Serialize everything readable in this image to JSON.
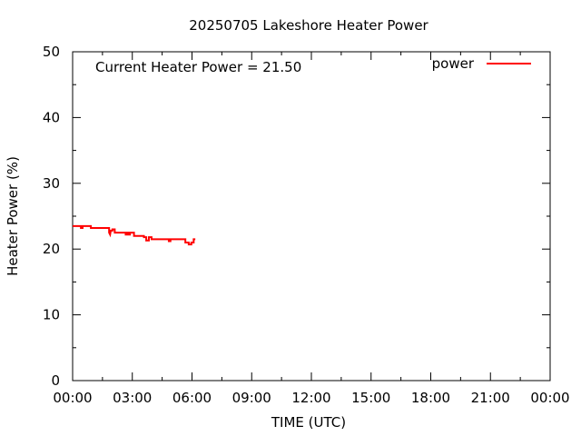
{
  "chart_data": {
    "type": "line",
    "title": "20250705 Lakeshore Heater Power",
    "xlabel": "TIME (UTC)",
    "ylabel": "Heater Power (%)",
    "annotation": "Current Heater Power = 21.50",
    "xlim": [
      "00:00",
      "24:00"
    ],
    "ylim": [
      0,
      50
    ],
    "x_ticks": [
      "00:00",
      "03:00",
      "06:00",
      "09:00",
      "12:00",
      "15:00",
      "18:00",
      "21:00",
      "00:00"
    ],
    "y_ticks": [
      "0",
      "10",
      "20",
      "30",
      "40",
      "50"
    ],
    "grid": false,
    "legend_position": "top-right",
    "series": [
      {
        "name": "power",
        "color": "#ff0000",
        "x": [
          "00:00",
          "00:25",
          "00:25",
          "00:30",
          "00:30",
          "00:55",
          "00:55",
          "01:50",
          "01:50",
          "01:53",
          "01:55",
          "02:00",
          "02:00",
          "02:07",
          "02:07",
          "02:12",
          "02:12",
          "02:40",
          "02:40",
          "02:43",
          "02:43",
          "02:48",
          "02:48",
          "02:53",
          "02:53",
          "03:05",
          "03:05",
          "03:35",
          "03:35",
          "03:42",
          "03:42",
          "03:50",
          "03:50",
          "03:58",
          "03:58",
          "04:10",
          "04:10",
          "04:50",
          "04:50",
          "04:55",
          "04:55",
          "05:40",
          "05:40",
          "05:50",
          "05:50",
          "05:58",
          "05:58",
          "06:05",
          "06:05",
          "06:10"
        ],
        "values": [
          23.5,
          23.5,
          23.2,
          23.2,
          23.5,
          23.5,
          23.2,
          23.2,
          22.5,
          22.2,
          22.8,
          22.8,
          23.0,
          23.0,
          22.5,
          22.5,
          22.5,
          22.5,
          22.2,
          22.2,
          22.5,
          22.5,
          22.2,
          22.2,
          22.5,
          22.5,
          22.0,
          22.0,
          21.8,
          21.8,
          21.3,
          21.3,
          21.8,
          21.8,
          21.5,
          21.5,
          21.5,
          21.5,
          21.2,
          21.2,
          21.5,
          21.5,
          21.0,
          21.0,
          20.7,
          20.7,
          21.0,
          21.0,
          21.5,
          21.5
        ]
      }
    ]
  }
}
